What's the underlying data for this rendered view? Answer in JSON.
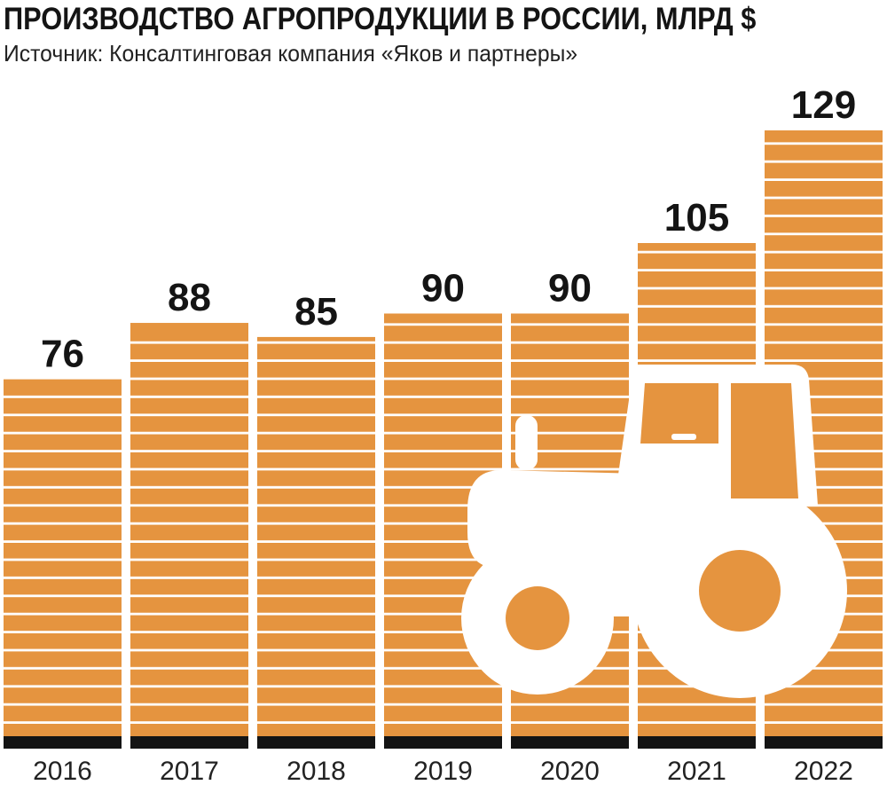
{
  "header": {
    "title": "ПРОИЗВОДСТВО АГРОПРОДУКЦИИ В РОССИИ, МЛРД $",
    "source": "Источник: Консалтинговая компания «Яков и партнеры»"
  },
  "chart_data": {
    "type": "bar",
    "categories": [
      "2016",
      "2017",
      "2018",
      "2019",
      "2020",
      "2021",
      "2022"
    ],
    "values": [
      76,
      88,
      85,
      90,
      90,
      105,
      129
    ],
    "xlabel": "",
    "ylabel": "",
    "grid": false,
    "legend": "none",
    "colors": {
      "bar": "#E5943F",
      "stripe": "#ffffff",
      "base": "#141414",
      "illustration": "#ffffff"
    },
    "illustration_icon": "tractor-icon"
  }
}
